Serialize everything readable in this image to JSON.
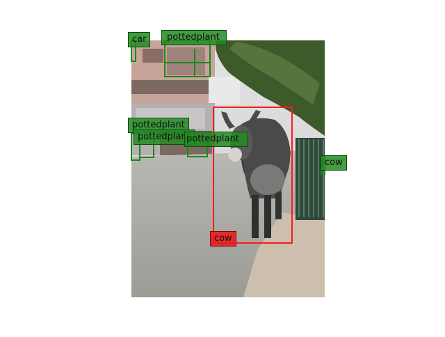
{
  "detections": [
    {
      "label": "car",
      "color": "#228B22"
    },
    {
      "label": "pottedplant",
      "color": "#228B22"
    },
    {
      "label": "pottedplant",
      "color": "#228B22"
    },
    {
      "label": "pottedplant",
      "color": "#228B22"
    },
    {
      "label": "pottedplant",
      "color": "#228B22"
    },
    {
      "label": "cow",
      "color": "#228B22"
    },
    {
      "label": "cow",
      "color": "#E01010"
    }
  ],
  "colors": {
    "sky": "#d9d9d9",
    "road": "#a7a7a2",
    "foliage": "#3d5a2a",
    "cow": "#3b3b3b",
    "highlight_box": "#ff1a1a",
    "box": "#1a8a1a"
  }
}
